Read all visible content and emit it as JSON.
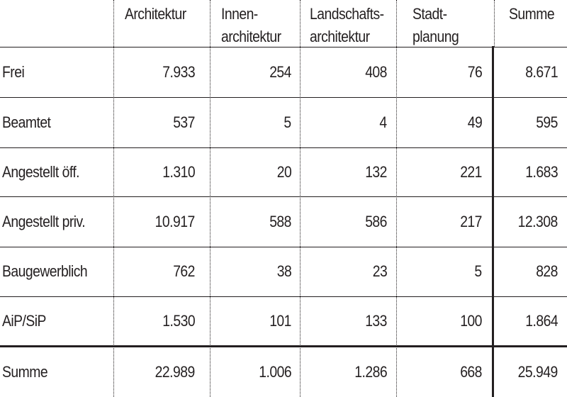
{
  "header": {
    "col1": [
      "Architektur"
    ],
    "col2": [
      "Innen-",
      "architektur"
    ],
    "col3": [
      "Landschafts-",
      "architektur"
    ],
    "col4": [
      "Stadt-",
      "planung"
    ],
    "col5": [
      "Summe"
    ]
  },
  "rows": [
    {
      "label": "Frei",
      "values": [
        "7.933",
        "254",
        "408",
        "76",
        "8.671"
      ]
    },
    {
      "label": "Beamtet",
      "values": [
        "537",
        "5",
        "4",
        "49",
        "595"
      ]
    },
    {
      "label": "Angestellt öff.",
      "values": [
        "1.310",
        "20",
        "132",
        "221",
        "1.683"
      ]
    },
    {
      "label": "Angestellt priv.",
      "values": [
        "10.917",
        "588",
        "586",
        "217",
        "12.308"
      ]
    },
    {
      "label": "Baugewerblich",
      "values": [
        "762",
        "38",
        "23",
        "5",
        "828"
      ]
    },
    {
      "label": "AiP/SiP",
      "values": [
        "1.530",
        "101",
        "133",
        "100",
        "1.864"
      ]
    }
  ],
  "total": {
    "label": "Summe",
    "values": [
      "22.989",
      "1.006",
      "1.286",
      "668",
      "25.949"
    ]
  }
}
